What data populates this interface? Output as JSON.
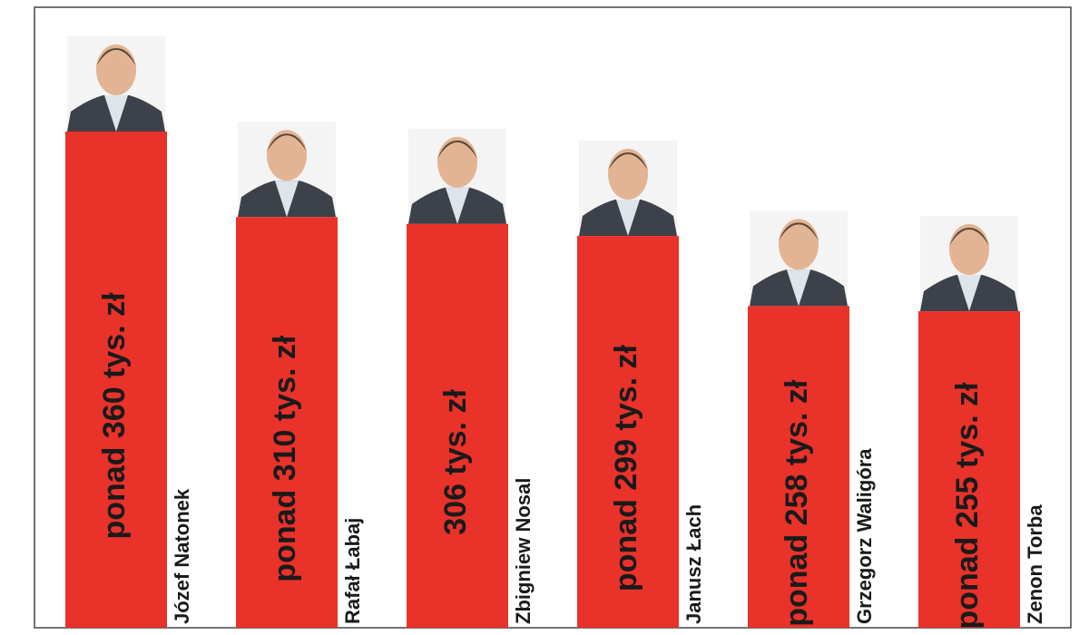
{
  "chart_data": {
    "type": "bar",
    "categories": [
      "Józef Natonek",
      "Rafał Łabaj",
      "Zbigniew Nosal",
      "Janusz Łach",
      "Grzegorz Waligóra",
      "Zenon Torba"
    ],
    "values": [
      360,
      310,
      306,
      299,
      258,
      255
    ],
    "value_labels": [
      "ponad 360 tys. zł",
      "ponad 310 tys. zł",
      "306 tys. zł",
      "ponad 299 tys. zł",
      "ponad 258 tys. zł",
      "ponad 255 tys. zł"
    ],
    "color": "#e8322a",
    "ylim": [
      70,
      360
    ]
  }
}
